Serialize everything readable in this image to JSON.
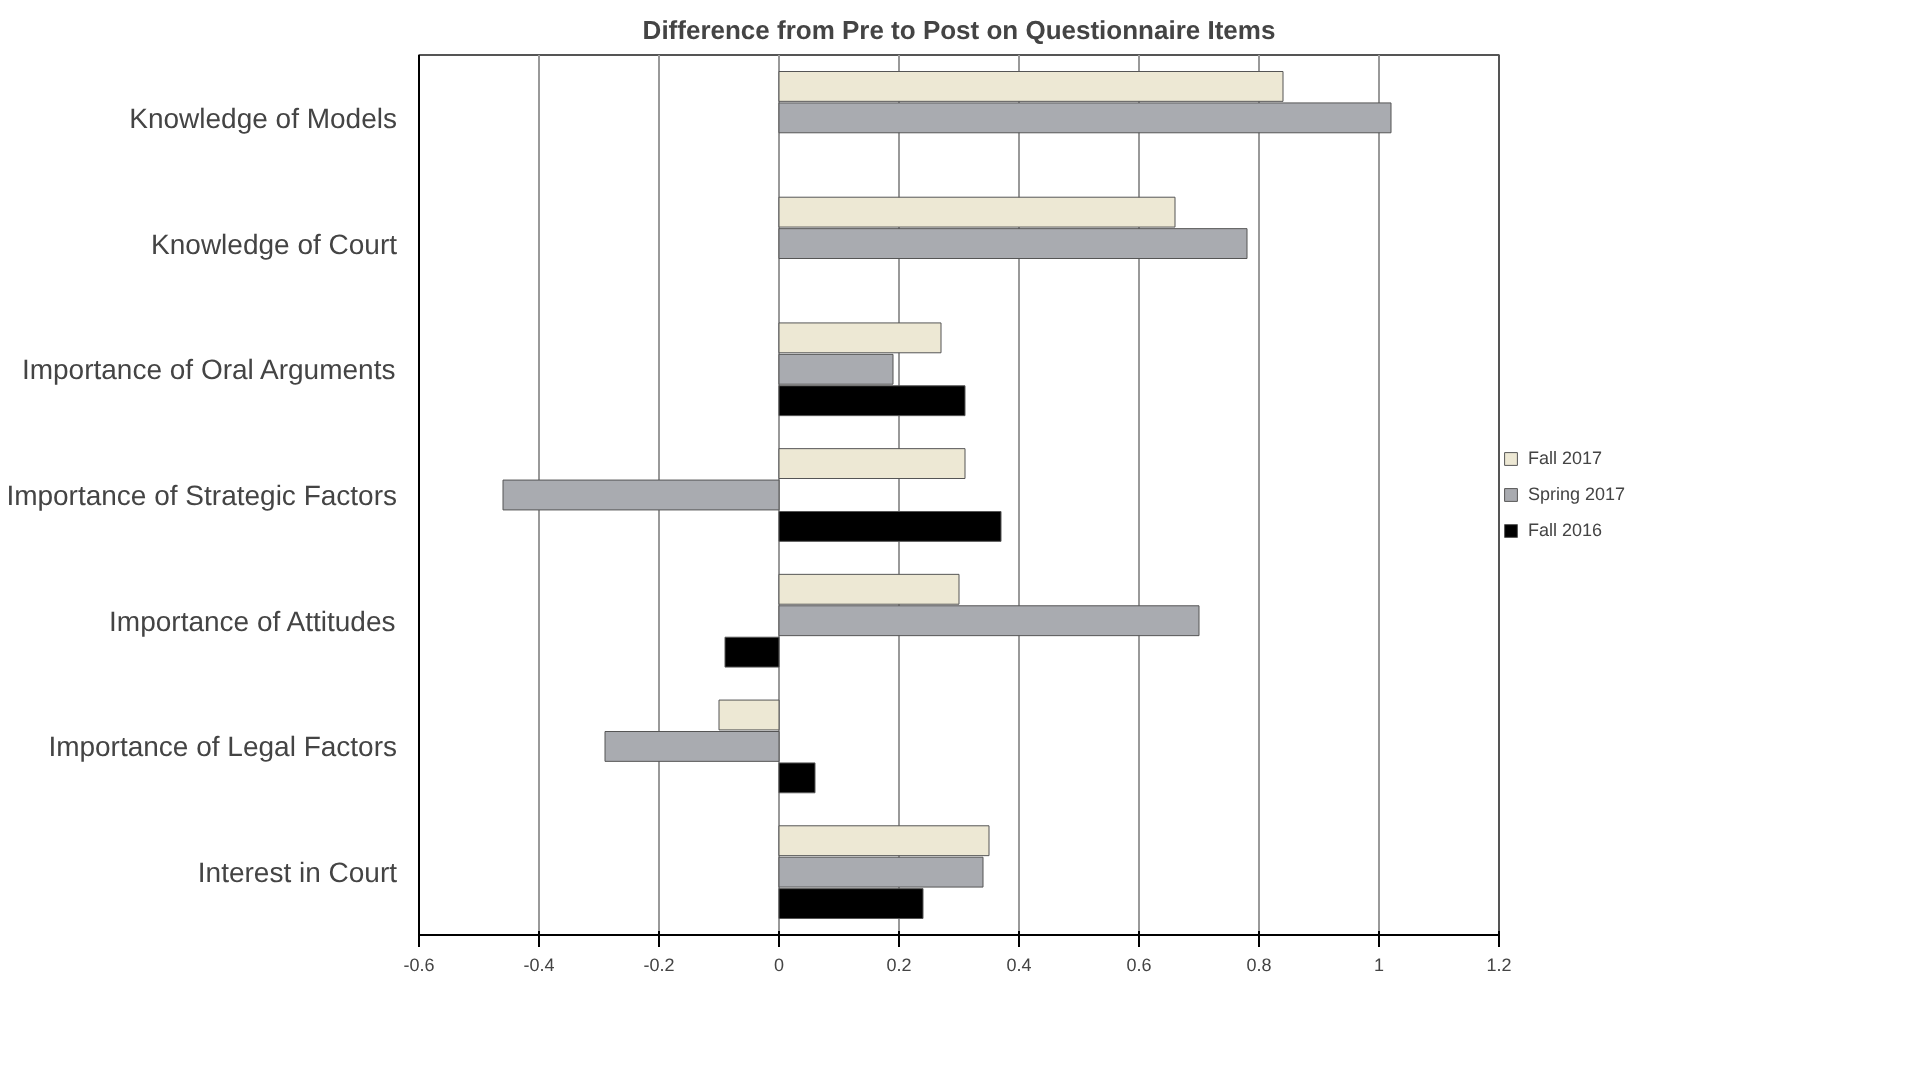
{
  "chart_data": {
    "type": "bar",
    "orientation": "horizontal",
    "title": "Difference from Pre to Post on Questionnaire Items",
    "categories": [
      "Knowledge of Models",
      "Knowledge of Court",
      "Importance of Oral Arguments",
      "Importance of Strategic Factors",
      "Importance of Attitudes",
      "Importance of Legal Factors",
      "Interest in Court"
    ],
    "series": [
      {
        "name": "Fall 2017",
        "color": "#ede8d4",
        "values": [
          0.84,
          0.66,
          0.27,
          0.31,
          0.3,
          -0.1,
          0.35
        ]
      },
      {
        "name": "Spring 2017",
        "color": "#a9abb0",
        "values": [
          1.02,
          0.78,
          0.19,
          -0.46,
          0.7,
          -0.29,
          0.34
        ]
      },
      {
        "name": "Fall 2016",
        "color": "#000000",
        "values": [
          null,
          null,
          0.31,
          0.37,
          -0.09,
          0.06,
          0.24
        ]
      }
    ],
    "xlim": [
      -0.6,
      1.2
    ],
    "xticks": [
      -0.6,
      -0.4,
      -0.2,
      0,
      0.2,
      0.4,
      0.6,
      0.8,
      1,
      1.2
    ],
    "grid": "x",
    "legend": "right"
  }
}
